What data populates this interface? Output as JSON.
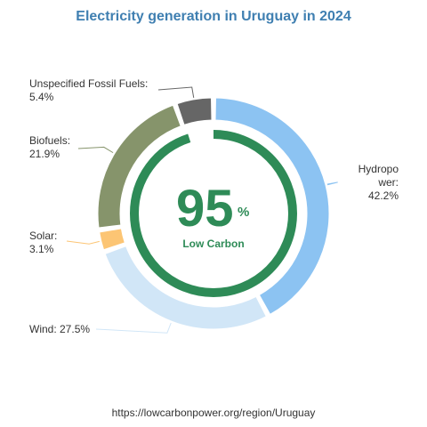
{
  "chart_data": {
    "type": "pie",
    "title": "Electricity generation in Uruguay in 2024",
    "categories": [
      "Hydropower",
      "Wind",
      "Solar",
      "Biofuels",
      "Unspecified Fossil Fuels"
    ],
    "values": [
      42.2,
      27.5,
      3.1,
      21.9,
      5.4
    ],
    "labels": {
      "hydro": [
        "Hydropo",
        "wer:",
        "42.2%"
      ],
      "wind": "Wind: 27.5%",
      "solar": [
        "Solar:",
        "3.1%"
      ],
      "bio": [
        "Biofuels:",
        "21.9%"
      ],
      "fossil": [
        "Unspecified Fossil Fuels:",
        "5.4%"
      ]
    },
    "colors": [
      "#8cc3f2",
      "#d1e6f7",
      "#fcc574",
      "#86946b",
      "#666666"
    ],
    "center_value": "95",
    "center_unit": "%",
    "center_label": "Low Carbon",
    "center_fraction": 0.95,
    "inner_ring_color": "#2e8b57"
  },
  "source": "https://lowcarbonpower.org/region/Uruguay"
}
